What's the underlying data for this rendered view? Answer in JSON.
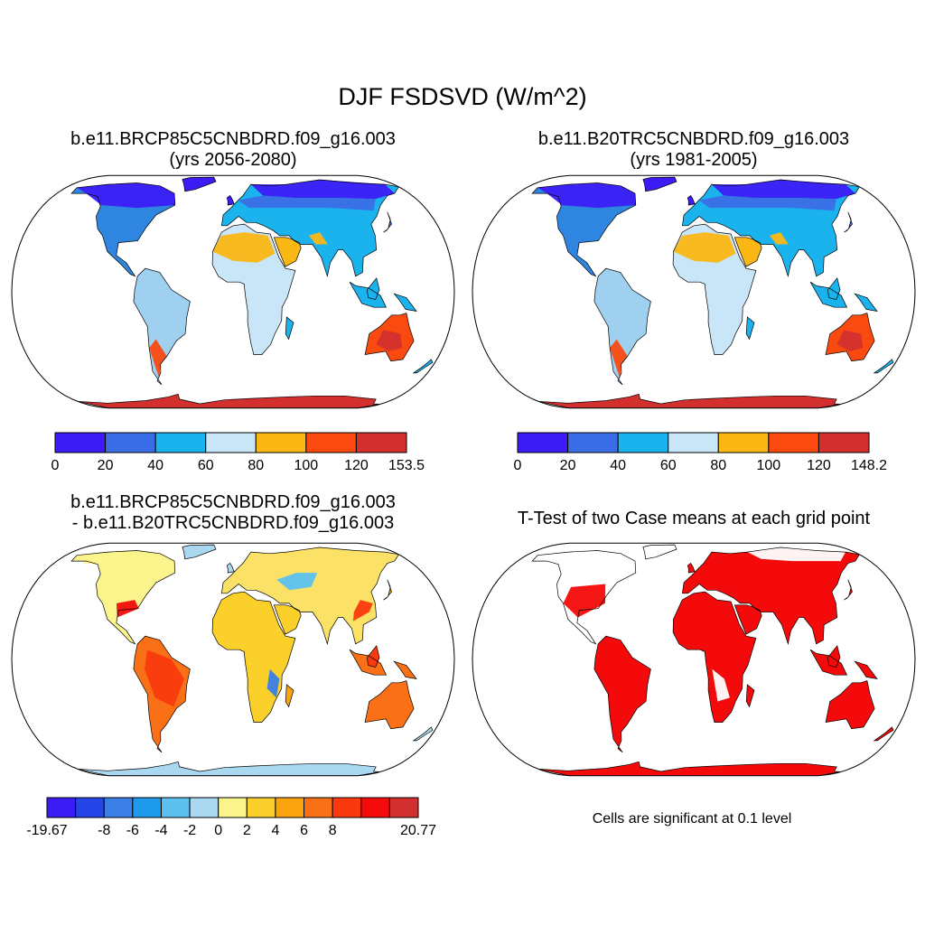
{
  "title": "DJF FSDSVD (W/m^2)",
  "panels": [
    {
      "id": "a",
      "title_line1": "b.e11.BRCP85C5CNBDRD.f09_g16.003",
      "title_line2": "(yrs 2056-2080)",
      "colorbar": {
        "colors": [
          "#3c1cf5",
          "#3b6ee6",
          "#1ab3ee",
          "#c8e6f7",
          "#fbb714",
          "#fa4a10",
          "#d32f2f"
        ],
        "tick_labels": [
          "0",
          "20",
          "40",
          "60",
          "80",
          "100",
          "120",
          "153.5"
        ]
      }
    },
    {
      "id": "b",
      "title_line1": "b.e11.B20TRC5CNBDRD.f09_g16.003",
      "title_line2": "(yrs 1981-2005)",
      "colorbar": {
        "colors": [
          "#3c1cf5",
          "#3b6ee6",
          "#1ab3ee",
          "#c8e6f7",
          "#fbb714",
          "#fa4a10",
          "#d32f2f"
        ],
        "tick_labels": [
          "0",
          "20",
          "40",
          "60",
          "80",
          "100",
          "120",
          "148.2"
        ]
      }
    },
    {
      "id": "c",
      "title_line1": "b.e11.BRCP85C5CNBDRD.f09_g16.003",
      "title_line2": "- b.e11.B20TRC5CNBDRD.f09_g16.003",
      "colorbar": {
        "colors": [
          "#3c1cf5",
          "#2446e8",
          "#3a7ee6",
          "#1e9bea",
          "#5cc1ef",
          "#a9d8f0",
          "#fbf48c",
          "#fbd02a",
          "#fba40f",
          "#fa7016",
          "#fa3a0e",
          "#f40b0b",
          "#d32f2f"
        ],
        "tick_labels": [
          "-19.67",
          "-8",
          "-6",
          "-4",
          "-2",
          "0",
          "2",
          "4",
          "6",
          "8",
          "20.77"
        ]
      }
    },
    {
      "id": "d",
      "title": "T-Test of two Case means at each grid point",
      "note": "Cells are significant at 0.1 level",
      "significant_color": "#f40a0a"
    }
  ]
}
